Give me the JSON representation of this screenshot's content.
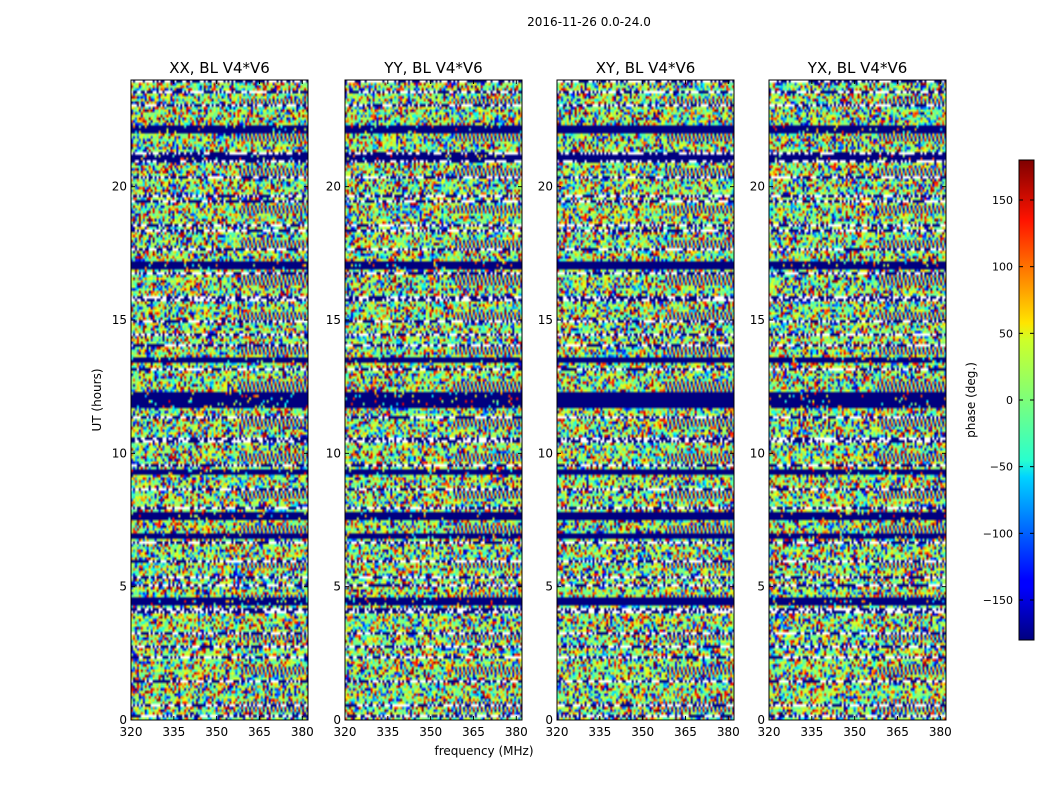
{
  "figure": {
    "suptitle": "2016-11-26 0.0-24.0",
    "xlabel": "frequency (MHz)",
    "ylabel": "UT (hours)"
  },
  "chart_data": {
    "type": "heatmap",
    "title": "2016-11-26 0.0-24.0",
    "xlabel": "frequency (MHz)",
    "ylabel": "UT (hours)",
    "xlim": [
      320,
      382
    ],
    "ylim": [
      0,
      24
    ],
    "xticks": [
      320,
      335,
      350,
      365,
      380
    ],
    "yticks": [
      0,
      5,
      10,
      15,
      20
    ],
    "xtick_labels": [
      "320",
      "335",
      "350",
      "365",
      "380"
    ],
    "ytick_labels": [
      "0",
      "5",
      "10",
      "15",
      "20"
    ],
    "panels": [
      {
        "id": "xx",
        "title": "XX, BL V4*V6"
      },
      {
        "id": "yy",
        "title": "YY, BL V4*V6"
      },
      {
        "id": "xy",
        "title": "XY, BL V4*V6"
      },
      {
        "id": "yx",
        "title": "YX, BL V4*V6"
      }
    ],
    "colorbar": {
      "label": "phase (deg.)",
      "colormap": "jet",
      "range": [
        -180,
        180
      ],
      "ticks": [
        150,
        100,
        50,
        0,
        -50,
        -100,
        -150
      ],
      "tick_labels": [
        "150",
        "100",
        "50",
        "0",
        "−50",
        "−100",
        "−150"
      ]
    },
    "flagged_bands_hours": [
      [
        11.7,
        12.3
      ],
      [
        16.9,
        17.2
      ],
      [
        9.2,
        9.4
      ],
      [
        4.3,
        4.6
      ],
      [
        6.8,
        7.0
      ],
      [
        7.5,
        7.8
      ],
      [
        22.0,
        22.3
      ],
      [
        21.0,
        21.2
      ],
      [
        13.4,
        13.6
      ]
    ]
  },
  "colors": {
    "flag": "#00007f",
    "background": "#ffffff",
    "frame": "#000000"
  }
}
